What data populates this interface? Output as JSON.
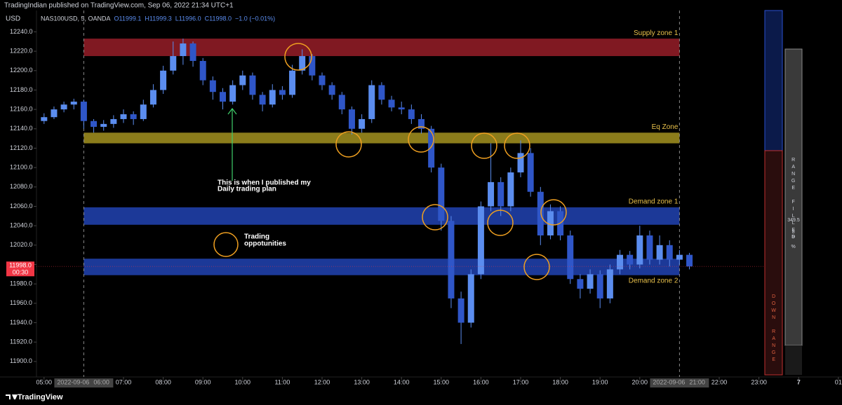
{
  "header": {
    "publisher": "TradingIndian published on TradingView.com, Sep 06, 2022 21:34 UTC+1",
    "brand": "TradingView"
  },
  "chart_data": {
    "type": "candlestick",
    "currency": "USD",
    "symbol": "NAS100USD, 5, OANDA",
    "ohlc_label": {
      "open": "O11999.1",
      "high": "H11999.3",
      "low": "L11996.0",
      "close": "C11998.0",
      "change": "−1.0 (−0.01%)"
    },
    "color": "#5b8def",
    "x": [
      5,
      5.25,
      5.5,
      5.75,
      6,
      6.25,
      6.5,
      6.75,
      7,
      7.25,
      7.5,
      7.75,
      8,
      8.25,
      8.5,
      8.75,
      9,
      9.25,
      9.5,
      9.75,
      10,
      10.25,
      10.5,
      10.75,
      11,
      11.25,
      11.5,
      11.75,
      12,
      12.25,
      12.5,
      12.75,
      13,
      13.25,
      13.5,
      13.75,
      14,
      14.25,
      14.5,
      14.75,
      15,
      15.25,
      15.5,
      15.75,
      16,
      16.25,
      16.5,
      16.75,
      17,
      17.25,
      17.5,
      17.75,
      18,
      18.25,
      18.5,
      18.75,
      19,
      19.25,
      19.5,
      19.75,
      20,
      20.25,
      20.5,
      20.75,
      21,
      21.25
    ],
    "candles": [
      [
        12148,
        12156,
        12145,
        12152
      ],
      [
        12152,
        12163,
        12150,
        12160
      ],
      [
        12160,
        12168,
        12157,
        12165
      ],
      [
        12165,
        12171,
        12160,
        12168
      ],
      [
        12168,
        12170,
        12140,
        12148
      ],
      [
        12148,
        12150,
        12136,
        12142
      ],
      [
        12142,
        12149,
        12138,
        12145
      ],
      [
        12145,
        12154,
        12141,
        12150
      ],
      [
        12150,
        12160,
        12146,
        12155
      ],
      [
        12155,
        12158,
        12144,
        12150
      ],
      [
        12150,
        12170,
        12148,
        12165
      ],
      [
        12165,
        12186,
        12162,
        12180
      ],
      [
        12180,
        12205,
        12176,
        12200
      ],
      [
        12200,
        12230,
        12196,
        12215
      ],
      [
        12215,
        12233,
        12206,
        12228
      ],
      [
        12228,
        12230,
        12204,
        12210
      ],
      [
        12210,
        12213,
        12185,
        12190
      ],
      [
        12190,
        12194,
        12170,
        12178
      ],
      [
        12178,
        12182,
        12160,
        12168
      ],
      [
        12168,
        12190,
        12165,
        12185
      ],
      [
        12185,
        12200,
        12180,
        12195
      ],
      [
        12195,
        12198,
        12170,
        12175
      ],
      [
        12175,
        12178,
        12158,
        12165
      ],
      [
        12165,
        12186,
        12162,
        12180
      ],
      [
        12180,
        12184,
        12170,
        12175
      ],
      [
        12175,
        12206,
        12172,
        12200
      ],
      [
        12200,
        12222,
        12196,
        12215
      ],
      [
        12215,
        12217,
        12190,
        12195
      ],
      [
        12195,
        12198,
        12180,
        12185
      ],
      [
        12185,
        12188,
        12170,
        12175
      ],
      [
        12175,
        12178,
        12155,
        12160
      ],
      [
        12160,
        12163,
        12134,
        12140
      ],
      [
        12140,
        12155,
        12136,
        12150
      ],
      [
        12150,
        12190,
        12146,
        12185
      ],
      [
        12185,
        12188,
        12165,
        12170
      ],
      [
        12170,
        12174,
        12158,
        12162
      ],
      [
        12162,
        12168,
        12155,
        12160
      ],
      [
        12160,
        12165,
        12145,
        12150
      ],
      [
        12150,
        12155,
        12135,
        12140
      ],
      [
        12140,
        12143,
        12095,
        12100
      ],
      [
        12100,
        12104,
        12035,
        12045
      ],
      [
        12045,
        12050,
        11955,
        11965
      ],
      [
        11965,
        11972,
        11918,
        11940
      ],
      [
        11940,
        11995,
        11935,
        11990
      ],
      [
        11990,
        12065,
        11985,
        12060
      ],
      [
        12060,
        12125,
        12055,
        12085
      ],
      [
        12085,
        12090,
        12050,
        12060
      ],
      [
        12060,
        12100,
        12055,
        12095
      ],
      [
        12095,
        12128,
        12090,
        12115
      ],
      [
        12115,
        12120,
        12070,
        12075
      ],
      [
        12075,
        12080,
        12020,
        12030
      ],
      [
        12030,
        12062,
        12026,
        12055
      ],
      [
        12055,
        12060,
        12025,
        12030
      ],
      [
        12030,
        12035,
        11980,
        11985
      ],
      [
        11985,
        11990,
        11965,
        11975
      ],
      [
        11975,
        11995,
        11970,
        11990
      ],
      [
        11990,
        11994,
        11955,
        11965
      ],
      [
        11965,
        12000,
        11960,
        11995
      ],
      [
        11995,
        12015,
        11990,
        12010
      ],
      [
        12010,
        12014,
        11995,
        12000
      ],
      [
        12000,
        12040,
        11996,
        12030
      ],
      [
        12030,
        12035,
        12000,
        12005
      ],
      [
        12005,
        12030,
        12000,
        12020
      ],
      [
        12020,
        12025,
        11998,
        12005
      ],
      [
        12005,
        12015,
        12000,
        12010
      ],
      [
        12010,
        12012,
        11995,
        11998
      ]
    ],
    "zones": [
      {
        "name": "Supply zone 1",
        "low": 12215,
        "high": 12233,
        "color": "#8e1c26",
        "label_color": "#e8c04a"
      },
      {
        "name": "Eq Zone",
        "low": 12125,
        "high": 12136,
        "color": "#9a8a1e",
        "label_color": "#e8c04a"
      },
      {
        "name": "Demand zone 1",
        "low": 12041,
        "high": 12059,
        "color": "#1f3fa8",
        "label_color": "#e8c04a"
      },
      {
        "name": "Demand zone 2",
        "low": 11989,
        "high": 12006,
        "color": "#1f3fa8",
        "label_color": "#e8c04a"
      }
    ],
    "zone_start": 6,
    "zone_end": 21,
    "vlines": [
      {
        "x": 6,
        "date": "2022-09-06",
        "time": "06:00"
      },
      {
        "x": 21,
        "date": "2022-09-06",
        "time": "21:00"
      }
    ],
    "last_price": {
      "value": 11998.0,
      "label": "11998.0",
      "countdown": "00:30"
    },
    "annotations": [
      "This is when I published my",
      "Daily trading plan",
      "Trading",
      "oppotunities"
    ],
    "ylim": [
      11884,
      12262
    ],
    "yticks": [
      {
        "value": 11900,
        "label": "11900.0"
      },
      {
        "value": 11920,
        "label": "11920.0"
      },
      {
        "value": 11940,
        "label": "11940.0"
      },
      {
        "value": 11960,
        "label": "11960.0"
      },
      {
        "value": 11980,
        "label": "11980.0"
      },
      {
        "value": 12000,
        "label": "12000.0"
      },
      {
        "value": 12020,
        "label": "12020.0"
      },
      {
        "value": 12040,
        "label": "12040.0"
      },
      {
        "value": 12060,
        "label": "12060.0"
      },
      {
        "value": 12080,
        "label": "12080.0"
      },
      {
        "value": 12100,
        "label": "12100.0"
      },
      {
        "value": 12120,
        "label": "12120.0"
      },
      {
        "value": 12140,
        "label": "12140.0"
      },
      {
        "value": 12160,
        "label": "12160.0"
      },
      {
        "value": 12180,
        "label": "12180.0"
      },
      {
        "value": 12200,
        "label": "12200.0"
      },
      {
        "value": 12220,
        "label": "12220.0"
      },
      {
        "value": 12240,
        "label": "12240.0"
      }
    ],
    "xticks": [
      {
        "value": 5,
        "label": "05:00"
      },
      {
        "value": 7,
        "label": "07:00"
      },
      {
        "value": 8,
        "label": "08:00"
      },
      {
        "value": 9,
        "label": "09:00"
      },
      {
        "value": 10,
        "label": "10:00"
      },
      {
        "value": 11,
        "label": "11:00"
      },
      {
        "value": 12,
        "label": "12:00"
      },
      {
        "value": 13,
        "label": "13:00"
      },
      {
        "value": 14,
        "label": "14:00"
      },
      {
        "value": 15,
        "label": "15:00"
      },
      {
        "value": 16,
        "label": "16:00"
      },
      {
        "value": 17,
        "label": "17:00"
      },
      {
        "value": 18,
        "label": "18:00"
      },
      {
        "value": 19,
        "label": "19:00"
      },
      {
        "value": 20,
        "label": "20:00"
      },
      {
        "value": 22,
        "label": "22:00"
      },
      {
        "value": 23,
        "label": "23:00"
      },
      {
        "value": 24,
        "label": "7"
      },
      {
        "value": 25,
        "label": "01"
      }
    ],
    "range_panel": {
      "filled_title": "RANGE FILLED",
      "filled_value": "349.5",
      "filled_pct": "89 %",
      "down_title": "DOWN RANGE"
    }
  }
}
